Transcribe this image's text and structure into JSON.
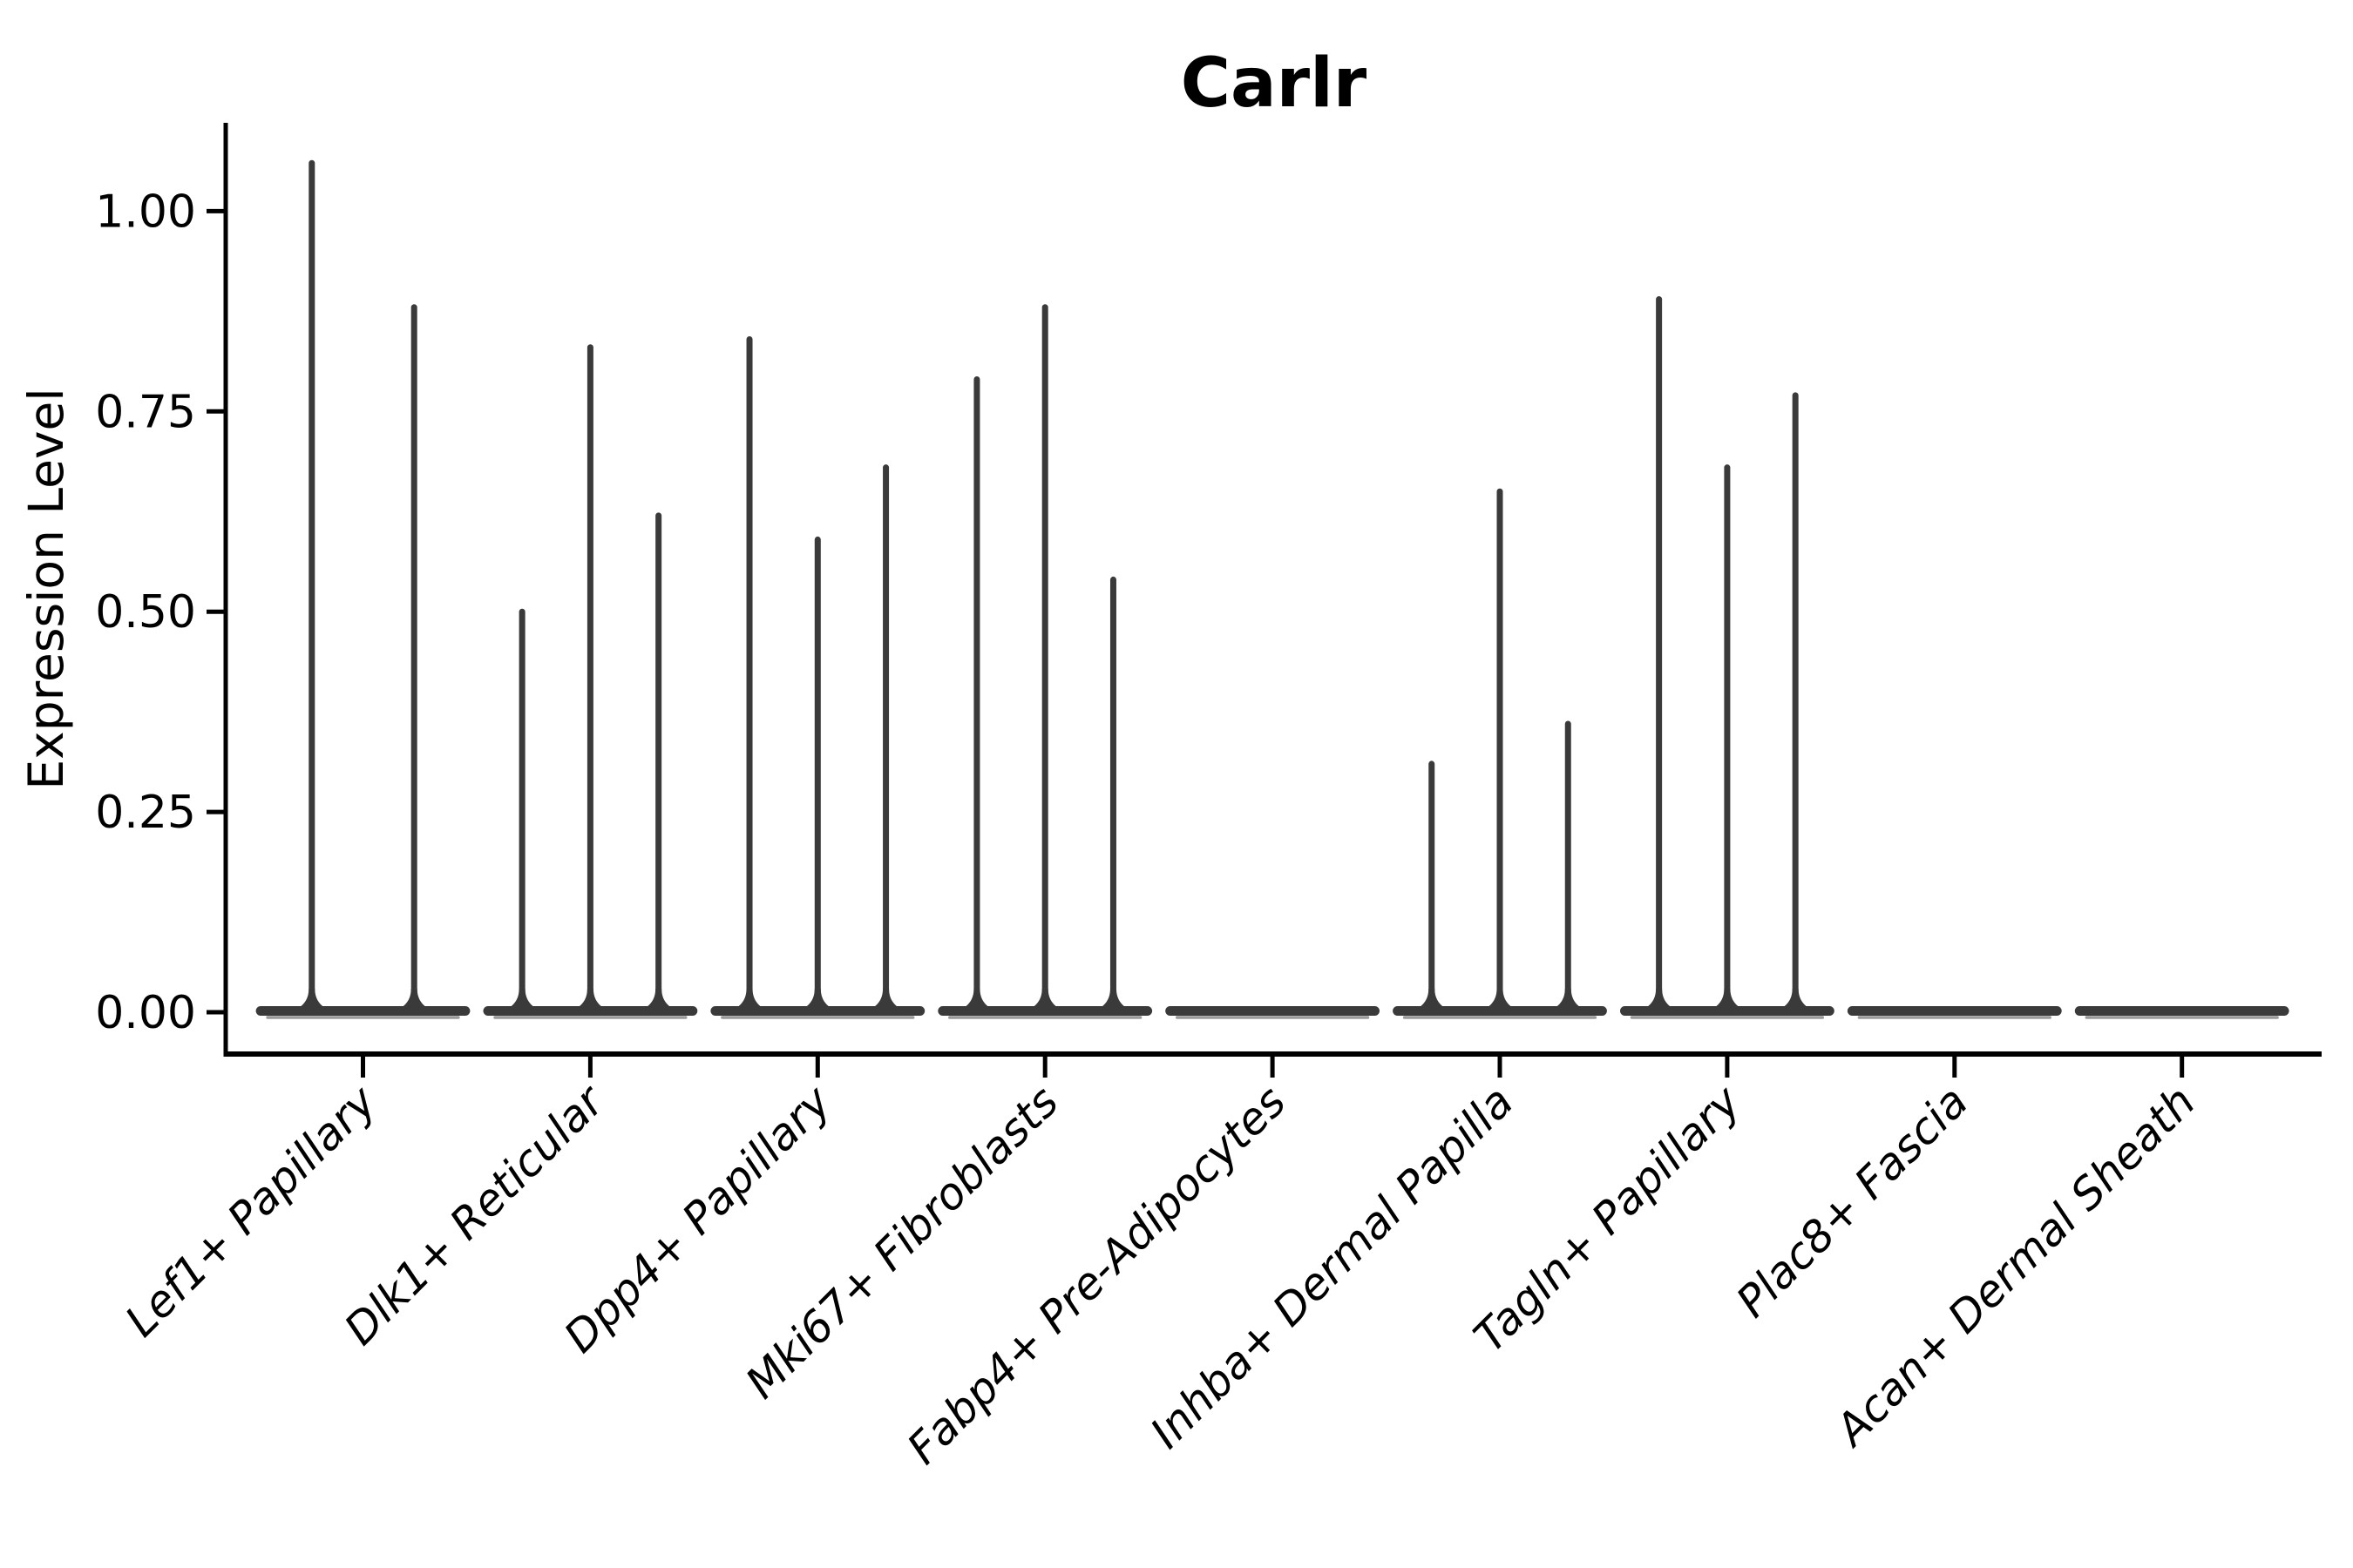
{
  "figure": {
    "background": "#ffffff",
    "kind": "single-cell violin plot (Seurat-style VlnPlot)"
  },
  "chart_data": {
    "type": "violin",
    "title": "Carlr",
    "xlabel": "",
    "ylabel": "Expression Level",
    "ylim": [
      0,
      1.1
    ],
    "yticks": [
      0,
      0.25,
      0.5,
      0.75,
      1.0
    ],
    "ytick_labels": [
      "0.00",
      "0.25",
      "0.50",
      "0.75",
      "1.00"
    ],
    "grid": false,
    "legend": "none",
    "spines": [
      "left",
      "bottom"
    ],
    "x_label_rotation_deg": 45,
    "x_label_style": "italic",
    "categories": [
      "Lef1+ Papillary",
      "Dlk1+ Reticular",
      "Dpp4+ Papillary",
      "Mki67+ Fibroblasts",
      "Fabp4+ Pre-Adipocytes",
      "Inhba+ Dermal Papilla",
      "Tagln+ Papillary",
      "Plac8+ Fascia",
      "Acan+ Dermal Sheath"
    ],
    "groups": [
      {
        "category": "Lef1+ Papillary",
        "spike_maxima": [
          1.06,
          0.88
        ]
      },
      {
        "category": "Dlk1+ Reticular",
        "spike_maxima": [
          0.5,
          0.83,
          0.62
        ]
      },
      {
        "category": "Dpp4+ Papillary",
        "spike_maxima": [
          0.84,
          0.59,
          0.68
        ]
      },
      {
        "category": "Mki67+ Fibroblasts",
        "spike_maxima": [
          0.79,
          0.88,
          0.54
        ]
      },
      {
        "category": "Fabp4+ Pre-Adipocytes",
        "spike_maxima": []
      },
      {
        "category": "Inhba+ Dermal Papilla",
        "spike_maxima": [
          0.31,
          0.65,
          0.36
        ]
      },
      {
        "category": "Tagln+ Papillary",
        "spike_maxima": [
          0.89,
          0.68,
          0.77
        ]
      },
      {
        "category": "Plac8+ Fascia",
        "spike_maxima": []
      },
      {
        "category": "Acan+ Dermal Sheath",
        "spike_maxima": []
      }
    ],
    "baseline_value": 0.0,
    "colors": {
      "violin": "#3A3A3A",
      "violin_fill_edge": "#9A9A9A",
      "spine": "#000000",
      "text": "#000000"
    }
  }
}
